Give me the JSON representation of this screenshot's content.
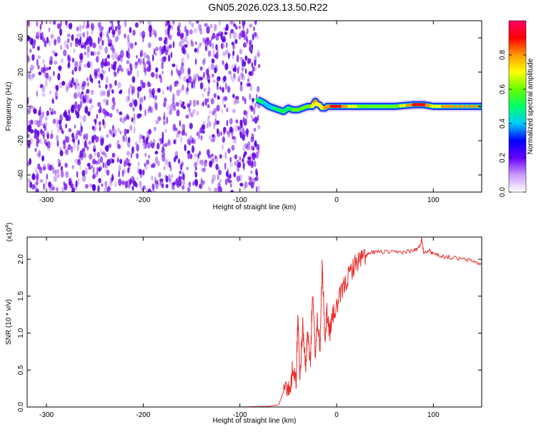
{
  "title": "GN05.2026.023.13.50.R22",
  "chart_data": [
    {
      "type": "heatmap",
      "title": "GN05.2026.023.13.50.R22",
      "xlabel": "Height of straight line (km)",
      "ylabel": "Frequency (Hz)",
      "xlim": [
        -320,
        150
      ],
      "ylim": [
        -50,
        50
      ],
      "xticks": [
        -300,
        -200,
        -100,
        0,
        100
      ],
      "xtick_labels": [
        "-300",
        "-200",
        "-100",
        "0",
        "100"
      ],
      "yticks": [
        -40,
        -20,
        0,
        20,
        40
      ],
      "ytick_labels": [
        "-40",
        "-20",
        "0",
        "20",
        "40"
      ],
      "noise_region_x": [
        -320,
        -80
      ],
      "noise_color": "#6a00e6",
      "ridge": {
        "x": [
          -82,
          -75,
          -70,
          -65,
          -60,
          -55,
          -50,
          -45,
          -40,
          -35,
          -30,
          -25,
          -22,
          -20,
          -18,
          -15,
          -12,
          -10,
          0,
          20,
          40,
          60,
          80,
          90,
          100,
          120,
          150
        ],
        "y": [
          4,
          2,
          0,
          -1,
          -2,
          -3,
          -1,
          -2,
          -2,
          -1,
          0,
          0,
          3,
          1,
          1,
          -1,
          -1,
          0,
          0,
          0,
          0,
          0,
          1,
          1,
          0,
          0,
          0
        ],
        "amplitude": [
          0.55,
          0.5,
          0.45,
          0.5,
          0.55,
          0.6,
          0.55,
          0.6,
          0.65,
          0.6,
          0.65,
          0.7,
          0.85,
          0.75,
          0.7,
          0.7,
          0.8,
          0.85,
          0.95,
          0.7,
          0.6,
          0.65,
          0.9,
          0.95,
          0.75,
          0.85,
          0.8
        ]
      },
      "colorbar": {
        "label": "Normalized spectral amplitude",
        "range": [
          0,
          1
        ],
        "ticks": [
          0.0,
          0.2,
          0.4,
          0.6,
          0.8
        ],
        "tick_labels": [
          "0.0",
          "0.2",
          "0.4",
          "0.6",
          "0.8"
        ],
        "colors": [
          "#ffffff",
          "#cc99ff",
          "#6600ff",
          "#0000ff",
          "#00ccff",
          "#00ff66",
          "#66ff00",
          "#ffff00",
          "#ff9900",
          "#ff0000",
          "#ff0066"
        ]
      }
    },
    {
      "type": "line",
      "xlabel": "Height of straight line (km)",
      "ylabel": "SNR (10 * v/v)",
      "y_multiplier_label": "(x10",
      "y_multiplier_exp": "4",
      "y_multiplier_close": ")",
      "xlim": [
        -320,
        150
      ],
      "ylim": [
        0,
        2.3
      ],
      "xticks": [
        -300,
        -200,
        -100,
        0,
        100
      ],
      "xtick_labels": [
        "-300",
        "-200",
        "-100",
        "0",
        "100"
      ],
      "yticks": [
        0.0,
        0.5,
        1.0,
        1.5,
        2.0
      ],
      "ytick_labels": [
        "0.0",
        "0.5",
        "1.0",
        "1.5",
        "2.0"
      ],
      "series": [
        {
          "color": "#e8302e",
          "x": [
            -320,
            -200,
            -100,
            -70,
            -60,
            -52,
            -48,
            -45,
            -42,
            -40,
            -38,
            -35,
            -32,
            -30,
            -27,
            -25,
            -22,
            -20,
            -17,
            -15,
            -12,
            -10,
            -7,
            -5,
            0,
            5,
            10,
            15,
            20,
            25,
            30,
            35,
            40,
            50,
            60,
            70,
            80,
            85,
            88,
            90,
            95,
            100,
            110,
            120,
            130,
            140,
            150
          ],
          "y": [
            0.0,
            0.0,
            0.0,
            0.01,
            0.03,
            0.3,
            0.2,
            0.6,
            0.3,
            1.25,
            0.4,
            1.1,
            0.5,
            1.0,
            0.6,
            1.55,
            0.7,
            1.2,
            0.8,
            1.95,
            0.9,
            1.3,
            1.0,
            1.2,
            1.35,
            1.55,
            1.7,
            1.85,
            1.95,
            2.0,
            2.05,
            2.08,
            2.1,
            2.1,
            2.09,
            2.1,
            2.12,
            2.15,
            2.27,
            2.1,
            2.12,
            2.08,
            2.04,
            2.02,
            2.0,
            1.98,
            1.93
          ]
        }
      ]
    }
  ]
}
